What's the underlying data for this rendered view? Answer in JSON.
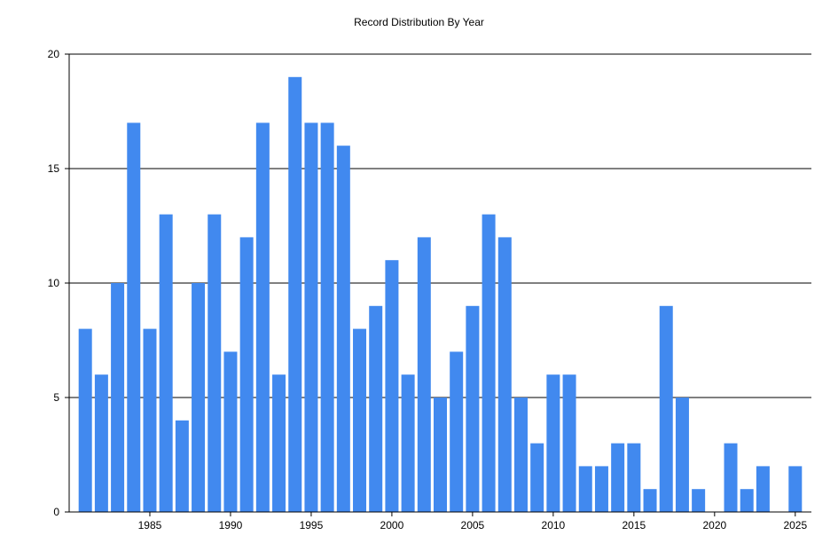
{
  "chart_data": {
    "type": "bar",
    "title": "Record Distribution By Year",
    "xlabel": "",
    "ylabel": "",
    "ylim": [
      0,
      20
    ],
    "yticks": [
      0,
      5,
      10,
      15,
      20
    ],
    "xticks": [
      1985,
      1990,
      1995,
      2000,
      2005,
      2010,
      2015,
      2020,
      2025
    ],
    "xlim": [
      1980,
      2026
    ],
    "grid": "horizontal",
    "bar_color": "#4189EF",
    "categories": [
      1981,
      1982,
      1983,
      1984,
      1985,
      1986,
      1987,
      1988,
      1989,
      1990,
      1991,
      1992,
      1993,
      1994,
      1995,
      1996,
      1997,
      1998,
      1999,
      2000,
      2001,
      2002,
      2003,
      2004,
      2005,
      2006,
      2007,
      2008,
      2009,
      2010,
      2011,
      2012,
      2013,
      2014,
      2015,
      2016,
      2017,
      2018,
      2019,
      2020,
      2021,
      2022,
      2023,
      2024,
      2025
    ],
    "values": [
      8,
      6,
      10,
      17,
      8,
      13,
      4,
      10,
      13,
      7,
      12,
      17,
      6,
      19,
      17,
      17,
      16,
      8,
      9,
      11,
      6,
      12,
      5,
      7,
      9,
      13,
      12,
      5,
      3,
      6,
      6,
      2,
      2,
      3,
      3,
      1,
      9,
      5,
      1,
      0,
      3,
      1,
      2,
      0,
      2
    ]
  }
}
